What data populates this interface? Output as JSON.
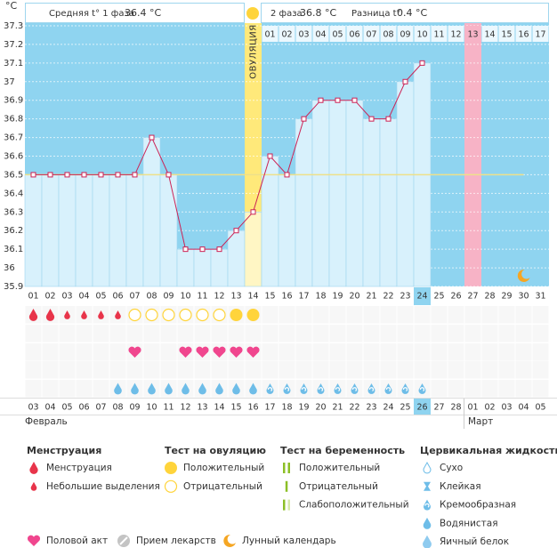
{
  "header": {
    "phase1_label": "Средняя t° 1 фаза",
    "phase1_value": "36.4 °C",
    "phase2_label": "2 фаза",
    "phase2_value": "36.8 °C",
    "diff_label": "Разница t°",
    "diff_value": "0.4 °C"
  },
  "chart_data": {
    "type": "line",
    "y_unit": "°C",
    "ovulation_label": "ОВУЛЯЦИЯ",
    "categories": [
      "01",
      "02",
      "03",
      "04",
      "05",
      "06",
      "07",
      "08",
      "09",
      "10",
      "11",
      "12",
      "13",
      "14",
      "15",
      "16",
      "17",
      "18",
      "19",
      "20",
      "21",
      "22",
      "23",
      "24",
      "25",
      "26",
      "27",
      "28",
      "29",
      "30",
      "31"
    ],
    "values": [
      36.5,
      36.5,
      36.5,
      36.5,
      36.5,
      36.5,
      36.5,
      36.7,
      36.5,
      36.1,
      36.1,
      36.1,
      36.2,
      36.3,
      36.6,
      36.5,
      36.8,
      36.9,
      36.9,
      36.9,
      36.8,
      36.8,
      37.0,
      37.1,
      null,
      null,
      null,
      null,
      null,
      null,
      null
    ],
    "ylim": [
      35.9,
      37.3
    ],
    "yticks": [
      35.9,
      36,
      36.1,
      36.2,
      36.3,
      36.4,
      36.5,
      36.6,
      36.7,
      36.8,
      36.9,
      37,
      37.1,
      37.2,
      37.3
    ],
    "grid": true,
    "coverline": 36.5,
    "color": "#cc2255",
    "bar_color": "#d8f1fc",
    "plot_color": "#8fd4f0",
    "coverline_color": "#eee08a",
    "column_kind": [
      "normal",
      "normal",
      "normal",
      "normal",
      "normal",
      "normal",
      "normal",
      "normal",
      "normal",
      "normal",
      "normal",
      "normal",
      "normal",
      "ovulation",
      "normal",
      "normal",
      "normal",
      "normal",
      "normal",
      "normal",
      "normal",
      "normal",
      "normal",
      "today",
      "normal",
      "normal",
      "period",
      "normal",
      "normal",
      "normal",
      "normal"
    ],
    "phase2_day_labels": [
      null,
      null,
      null,
      null,
      null,
      null,
      null,
      null,
      null,
      null,
      null,
      null,
      null,
      null,
      "01",
      "02",
      "03",
      "04",
      "05",
      "06",
      "07",
      "08",
      "09",
      "10",
      "11",
      "12",
      "13",
      "14",
      "15",
      "16",
      "17"
    ],
    "dates": [
      "03",
      "04",
      "05",
      "06",
      "07",
      "08",
      "09",
      "10",
      "11",
      "12",
      "13",
      "14",
      "15",
      "16",
      "17",
      "18",
      "19",
      "20",
      "21",
      "22",
      "23",
      "24",
      "25",
      "26",
      "27",
      "28",
      "01",
      "02",
      "03",
      "04",
      "05"
    ],
    "date_kind": [
      "weekend",
      null,
      null,
      null,
      null,
      null,
      "weekend",
      "weekend",
      null,
      null,
      null,
      null,
      null,
      "weekend",
      "weekend",
      null,
      null,
      null,
      null,
      null,
      "weekend",
      "weekend",
      null,
      "today",
      null,
      null,
      null,
      "weekend",
      "weekend",
      null,
      null
    ],
    "month_labels": [
      "Февраль",
      null,
      null,
      null,
      null,
      null,
      null,
      null,
      null,
      null,
      null,
      null,
      null,
      null,
      null,
      null,
      null,
      null,
      null,
      null,
      null,
      null,
      null,
      null,
      null,
      null,
      "Март",
      null,
      null,
      null,
      null
    ],
    "symbols": {
      "menstruation": [
        "drop-large",
        "drop-large",
        "drop-small",
        "drop-small",
        "drop-small",
        "drop-small",
        null,
        null,
        null,
        null,
        null,
        null,
        null,
        null,
        null,
        null,
        null,
        null,
        null,
        null,
        null,
        null,
        null,
        null,
        null,
        null,
        null,
        null,
        null,
        null,
        null
      ],
      "ovulation_test": [
        null,
        null,
        null,
        null,
        null,
        null,
        "negative",
        "negative",
        "negative",
        "negative",
        "negative",
        "negative",
        "positive",
        "positive",
        null,
        null,
        null,
        null,
        null,
        null,
        null,
        null,
        null,
        null,
        null,
        null,
        null,
        null,
        null,
        null,
        null
      ],
      "intercourse": [
        null,
        null,
        null,
        null,
        null,
        null,
        "heart",
        null,
        null,
        "heart",
        "heart",
        "heart",
        "heart",
        "heart",
        null,
        null,
        null,
        null,
        null,
        null,
        null,
        null,
        null,
        null,
        null,
        null,
        null,
        null,
        null,
        null,
        null
      ],
      "cervical": [
        null,
        null,
        null,
        null,
        null,
        "watery",
        "watery",
        "watery",
        "watery",
        "watery",
        "watery",
        "watery",
        "watery",
        "watery",
        "creamy",
        "creamy",
        "creamy",
        "creamy",
        "creamy",
        "creamy",
        "creamy",
        "creamy",
        "creamy",
        "creamy",
        null,
        null,
        null,
        null,
        null,
        null,
        null
      ],
      "lunar": [
        null,
        null,
        null,
        null,
        null,
        null,
        null,
        null,
        null,
        null,
        null,
        null,
        null,
        null,
        null,
        null,
        null,
        null,
        null,
        null,
        null,
        null,
        null,
        null,
        null,
        null,
        null,
        null,
        null,
        "moon",
        null
      ]
    }
  },
  "legend": {
    "sections": [
      {
        "title": "Менструация",
        "items": [
          {
            "label": "Менструация",
            "icon": "drop-large"
          },
          {
            "label": "Небольшие выделения",
            "icon": "drop-small"
          }
        ]
      },
      {
        "title": "Тест на овуляцию",
        "items": [
          {
            "label": "Положительный",
            "icon": "positive"
          },
          {
            "label": "Отрицательный",
            "icon": "negative"
          }
        ]
      },
      {
        "title": "Тест на беременность",
        "items": [
          {
            "label": "Положительный",
            "icon": "test-positive"
          },
          {
            "label": "Отрицательный",
            "icon": "test-negative"
          },
          {
            "label": "Слабоположительный",
            "icon": "test-weak"
          }
        ]
      },
      {
        "title": "Цервикальная жидкость",
        "items": [
          {
            "label": "Сухо",
            "icon": "dry"
          },
          {
            "label": "Клейкая",
            "icon": "sticky"
          },
          {
            "label": "Кремообразная",
            "icon": "creamy"
          },
          {
            "label": "Водянистая",
            "icon": "watery"
          },
          {
            "label": "Яичный белок",
            "icon": "egg-white"
          }
        ]
      }
    ],
    "extras": [
      {
        "label": "Половой акт",
        "icon": "heart"
      },
      {
        "label": "Прием лекарств",
        "icon": "pill"
      },
      {
        "label": "Лунный календарь",
        "icon": "moon"
      }
    ]
  }
}
